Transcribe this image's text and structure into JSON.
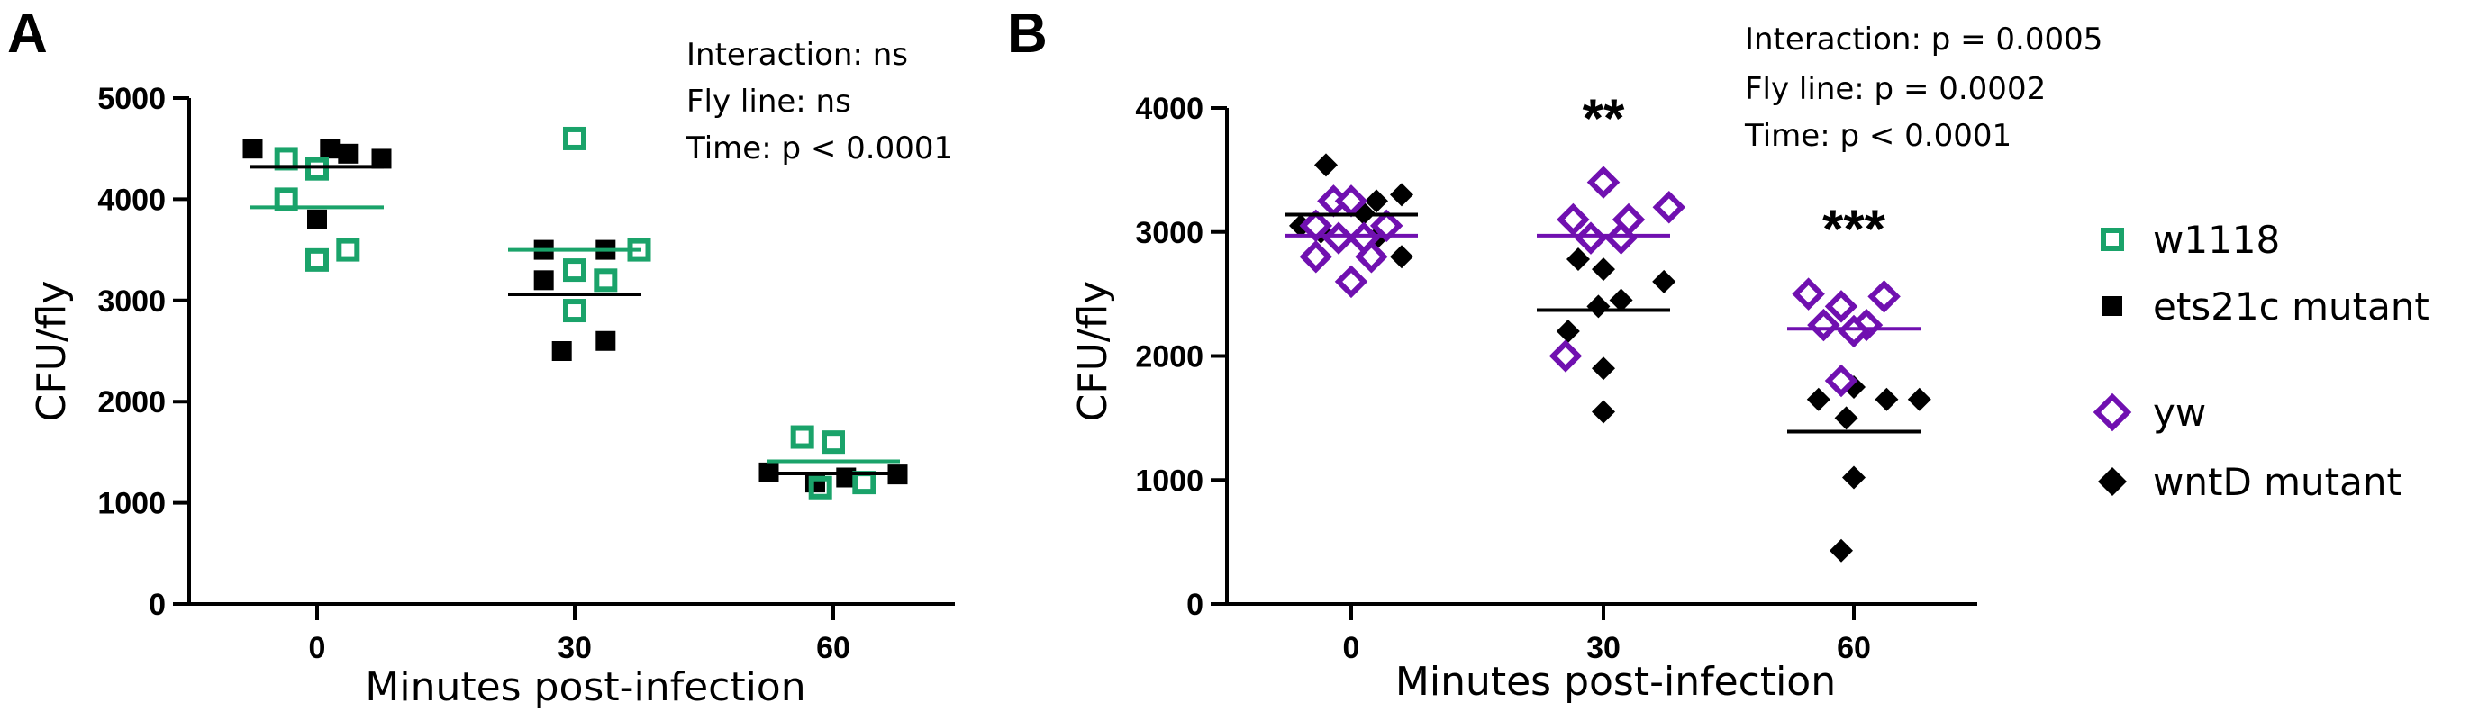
{
  "colors": {
    "green": "#1aa36a",
    "black": "#000000",
    "purple": "#7010b0"
  },
  "chart_data": [
    {
      "panel": "A",
      "type": "scatter",
      "xlabel": "Minutes post-infection",
      "ylabel": "CFU/fly",
      "categories": [
        "0",
        "30",
        "60"
      ],
      "yticks": [
        "0",
        "1000",
        "2000",
        "3000",
        "4000",
        "5000"
      ],
      "ylim": [
        0,
        5000
      ],
      "stats": [
        "Interaction: ns",
        "Fly line: ns",
        "Time: p < 0.0001"
      ],
      "significance": [],
      "series": [
        {
          "name": "w1118",
          "marker": "open-square",
          "color": "#1aa36a",
          "points": [
            {
              "cat": 0,
              "dx": -0.12,
              "y": 4400
            },
            {
              "cat": 0,
              "dx": 0.0,
              "y": 4300
            },
            {
              "cat": 0,
              "dx": -0.12,
              "y": 4000
            },
            {
              "cat": 0,
              "dx": 0.12,
              "y": 3500
            },
            {
              "cat": 0,
              "dx": 0.0,
              "y": 3400
            },
            {
              "cat": 1,
              "dx": 0.0,
              "y": 4600
            },
            {
              "cat": 1,
              "dx": 0.25,
              "y": 3500
            },
            {
              "cat": 1,
              "dx": 0.0,
              "y": 3300
            },
            {
              "cat": 1,
              "dx": 0.12,
              "y": 3200
            },
            {
              "cat": 1,
              "dx": 0.0,
              "y": 2900
            },
            {
              "cat": 2,
              "dx": -0.12,
              "y": 1650
            },
            {
              "cat": 2,
              "dx": 0.0,
              "y": 1600
            },
            {
              "cat": 2,
              "dx": 0.12,
              "y": 1200
            },
            {
              "cat": 2,
              "dx": -0.05,
              "y": 1150
            }
          ],
          "means": [
            3920,
            3500,
            1410
          ]
        },
        {
          "name": "ets21c mutant",
          "marker": "filled-square",
          "color": "#000000",
          "points": [
            {
              "cat": 0,
              "dx": -0.25,
              "y": 4500
            },
            {
              "cat": 0,
              "dx": 0.05,
              "y": 4500
            },
            {
              "cat": 0,
              "dx": 0.12,
              "y": 4450
            },
            {
              "cat": 0,
              "dx": 0.25,
              "y": 4400
            },
            {
              "cat": 0,
              "dx": 0.0,
              "y": 3800
            },
            {
              "cat": 1,
              "dx": -0.12,
              "y": 3500
            },
            {
              "cat": 1,
              "dx": 0.12,
              "y": 3500
            },
            {
              "cat": 1,
              "dx": -0.12,
              "y": 3200
            },
            {
              "cat": 1,
              "dx": 0.12,
              "y": 2600
            },
            {
              "cat": 1,
              "dx": -0.05,
              "y": 2500
            },
            {
              "cat": 2,
              "dx": -0.25,
              "y": 1300
            },
            {
              "cat": 2,
              "dx": -0.07,
              "y": 1200
            },
            {
              "cat": 2,
              "dx": 0.05,
              "y": 1250
            },
            {
              "cat": 2,
              "dx": 0.25,
              "y": 1280
            }
          ],
          "means": [
            4320,
            3060,
            1290
          ]
        }
      ]
    },
    {
      "panel": "B",
      "type": "scatter",
      "xlabel": "Minutes post-infection",
      "ylabel": "CFU/fly",
      "categories": [
        "0",
        "30",
        "60"
      ],
      "yticks": [
        "0",
        "1000",
        "2000",
        "3000",
        "4000"
      ],
      "ylim": [
        0,
        4000
      ],
      "stats": [
        "Interaction: p = 0.0005",
        "Fly line: p = 0.0002",
        "Time: p < 0.0001"
      ],
      "significance": [
        {
          "cat": 1,
          "label": "**"
        },
        {
          "cat": 2,
          "label": "***"
        }
      ],
      "series": [
        {
          "name": "yw",
          "marker": "open-diamond",
          "color": "#7010b0",
          "points": [
            {
              "cat": 0,
              "dx": -0.07,
              "y": 3250
            },
            {
              "cat": 0,
              "dx": 0.0,
              "y": 3250
            },
            {
              "cat": 0,
              "dx": -0.14,
              "y": 3050
            },
            {
              "cat": 0,
              "dx": 0.14,
              "y": 3050
            },
            {
              "cat": 0,
              "dx": -0.05,
              "y": 2950
            },
            {
              "cat": 0,
              "dx": 0.05,
              "y": 2950
            },
            {
              "cat": 0,
              "dx": -0.14,
              "y": 2800
            },
            {
              "cat": 0,
              "dx": 0.08,
              "y": 2800
            },
            {
              "cat": 0,
              "dx": 0.0,
              "y": 2600
            },
            {
              "cat": 1,
              "dx": 0.0,
              "y": 3400
            },
            {
              "cat": 1,
              "dx": -0.12,
              "y": 3100
            },
            {
              "cat": 1,
              "dx": 0.1,
              "y": 3100
            },
            {
              "cat": 1,
              "dx": 0.26,
              "y": 3200
            },
            {
              "cat": 1,
              "dx": -0.05,
              "y": 2950
            },
            {
              "cat": 1,
              "dx": 0.07,
              "y": 2950
            },
            {
              "cat": 1,
              "dx": -0.15,
              "y": 2000
            },
            {
              "cat": 2,
              "dx": -0.18,
              "y": 2500
            },
            {
              "cat": 2,
              "dx": -0.05,
              "y": 2400
            },
            {
              "cat": 2,
              "dx": 0.12,
              "y": 2480
            },
            {
              "cat": 2,
              "dx": -0.12,
              "y": 2250
            },
            {
              "cat": 2,
              "dx": 0.05,
              "y": 2250
            },
            {
              "cat": 2,
              "dx": 0.0,
              "y": 2200
            },
            {
              "cat": 2,
              "dx": -0.05,
              "y": 1800
            }
          ],
          "means": [
            2970,
            2970,
            2220
          ]
        },
        {
          "name": "wntD mutant",
          "marker": "filled-diamond",
          "color": "#000000",
          "points": [
            {
              "cat": 0,
              "dx": -0.1,
              "y": 3540
            },
            {
              "cat": 0,
              "dx": 0.2,
              "y": 3300
            },
            {
              "cat": 0,
              "dx": 0.1,
              "y": 3250
            },
            {
              "cat": 0,
              "dx": 0.05,
              "y": 3150
            },
            {
              "cat": 0,
              "dx": -0.2,
              "y": 3050
            },
            {
              "cat": 0,
              "dx": -0.12,
              "y": 3000
            },
            {
              "cat": 0,
              "dx": 0.1,
              "y": 2950
            },
            {
              "cat": 0,
              "dx": 0.2,
              "y": 2800
            },
            {
              "cat": 1,
              "dx": -0.1,
              "y": 2780
            },
            {
              "cat": 1,
              "dx": 0.0,
              "y": 2700
            },
            {
              "cat": 1,
              "dx": 0.24,
              "y": 2600
            },
            {
              "cat": 1,
              "dx": 0.07,
              "y": 2450
            },
            {
              "cat": 1,
              "dx": -0.02,
              "y": 2400
            },
            {
              "cat": 1,
              "dx": -0.14,
              "y": 2200
            },
            {
              "cat": 1,
              "dx": 0.0,
              "y": 1900
            },
            {
              "cat": 1,
              "dx": 0.0,
              "y": 1550
            },
            {
              "cat": 2,
              "dx": 0.0,
              "y": 1750
            },
            {
              "cat": 2,
              "dx": -0.14,
              "y": 1650
            },
            {
              "cat": 2,
              "dx": 0.13,
              "y": 1650
            },
            {
              "cat": 2,
              "dx": 0.26,
              "y": 1650
            },
            {
              "cat": 2,
              "dx": -0.03,
              "y": 1500
            },
            {
              "cat": 2,
              "dx": 0.0,
              "y": 1020
            },
            {
              "cat": 2,
              "dx": -0.05,
              "y": 430
            }
          ],
          "means": [
            3140,
            2370,
            1390
          ]
        }
      ]
    }
  ]
}
